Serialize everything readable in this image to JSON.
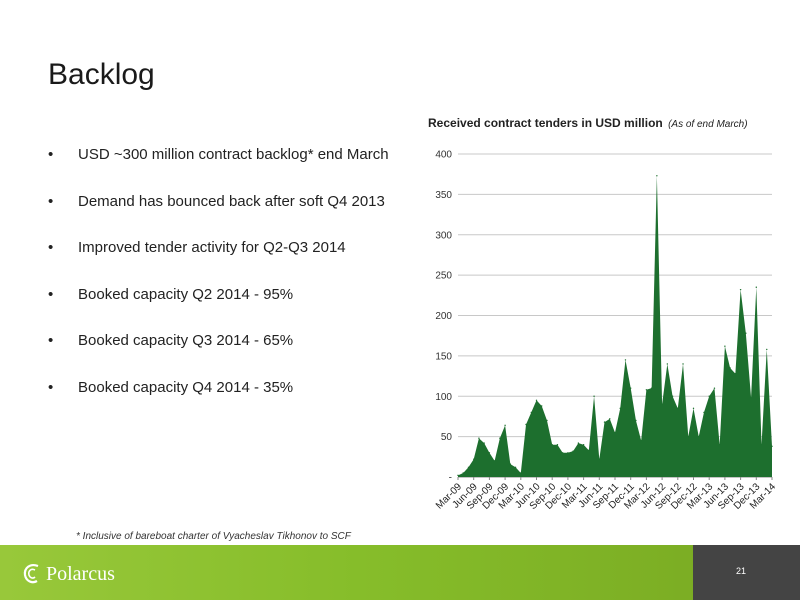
{
  "slide": {
    "title": "Backlog",
    "bullets": [
      "USD ~300 million contract backlog* end March",
      "Demand has bounced back after soft Q4 2013",
      "Improved tender activity for Q2-Q3 2014",
      "Booked capacity Q2 2014 - 95%",
      "Booked capacity Q3 2014 - 65%",
      "Booked capacity Q4 2014 - 35%"
    ],
    "bullet_symbol": "•",
    "footnote": "* Inclusive of bareboat charter of Vyacheslav Tikhonov to SCF",
    "page_number": "21"
  },
  "brand": {
    "logo_text": "Polarcus",
    "logo_icon": "polarcus-swirl-icon",
    "accent_green": "#86bd2a",
    "dark_gray": "#444444"
  },
  "chart_data": {
    "type": "area",
    "title": "Received contract tenders in USD million",
    "subtitle": "(As of end March)",
    "color": "#1d6f2e",
    "ylim": [
      0,
      400
    ],
    "y_ticks": [
      0,
      50,
      100,
      150,
      200,
      250,
      300,
      350,
      400
    ],
    "y_tick_labels": [
      "-",
      "50",
      "100",
      "150",
      "200",
      "250",
      "300",
      "350",
      "400"
    ],
    "x_tick_labels": [
      "Mar-09",
      "Jun-09",
      "Sep-09",
      "Dec-09",
      "Mar-10",
      "Jun-10",
      "Sep-10",
      "Dec-10",
      "Mar-11",
      "Jun-11",
      "Sep-11",
      "Dec-11",
      "Mar-12",
      "Jun-12",
      "Sep-12",
      "Dec-12",
      "Mar-13",
      "Jun-13",
      "Sep-13",
      "Dec-13",
      "Mar-14"
    ],
    "grid": true,
    "legend": "none",
    "x": [
      "2009-03",
      "2009-04",
      "2009-05",
      "2009-06",
      "2009-07",
      "2009-08",
      "2009-09",
      "2009-10",
      "2009-11",
      "2009-12",
      "2010-01",
      "2010-02",
      "2010-03",
      "2010-04",
      "2010-05",
      "2010-06",
      "2010-07",
      "2010-08",
      "2010-09",
      "2010-10",
      "2010-11",
      "2010-12",
      "2011-01",
      "2011-02",
      "2011-03",
      "2011-04",
      "2011-05",
      "2011-06",
      "2011-07",
      "2011-08",
      "2011-09",
      "2011-10",
      "2011-11",
      "2011-12",
      "2012-01",
      "2012-02",
      "2012-03",
      "2012-04",
      "2012-05",
      "2012-06",
      "2012-07",
      "2012-08",
      "2012-09",
      "2012-10",
      "2012-11",
      "2012-12",
      "2013-01",
      "2013-02",
      "2013-03",
      "2013-04",
      "2013-05",
      "2013-06",
      "2013-07",
      "2013-08",
      "2013-09",
      "2013-10",
      "2013-11",
      "2013-12",
      "2014-01",
      "2014-02",
      "2014-03"
    ],
    "values": [
      2,
      5,
      12,
      22,
      48,
      42,
      30,
      20,
      48,
      64,
      16,
      12,
      5,
      65,
      80,
      95,
      88,
      70,
      40,
      40,
      30,
      30,
      32,
      42,
      40,
      33,
      100,
      22,
      68,
      72,
      55,
      85,
      145,
      110,
      70,
      45,
      108,
      110,
      373,
      90,
      140,
      100,
      85,
      140,
      50,
      85,
      50,
      80,
      100,
      110,
      40,
      162,
      135,
      128,
      232,
      178,
      98,
      235,
      40,
      158,
      38
    ]
  }
}
